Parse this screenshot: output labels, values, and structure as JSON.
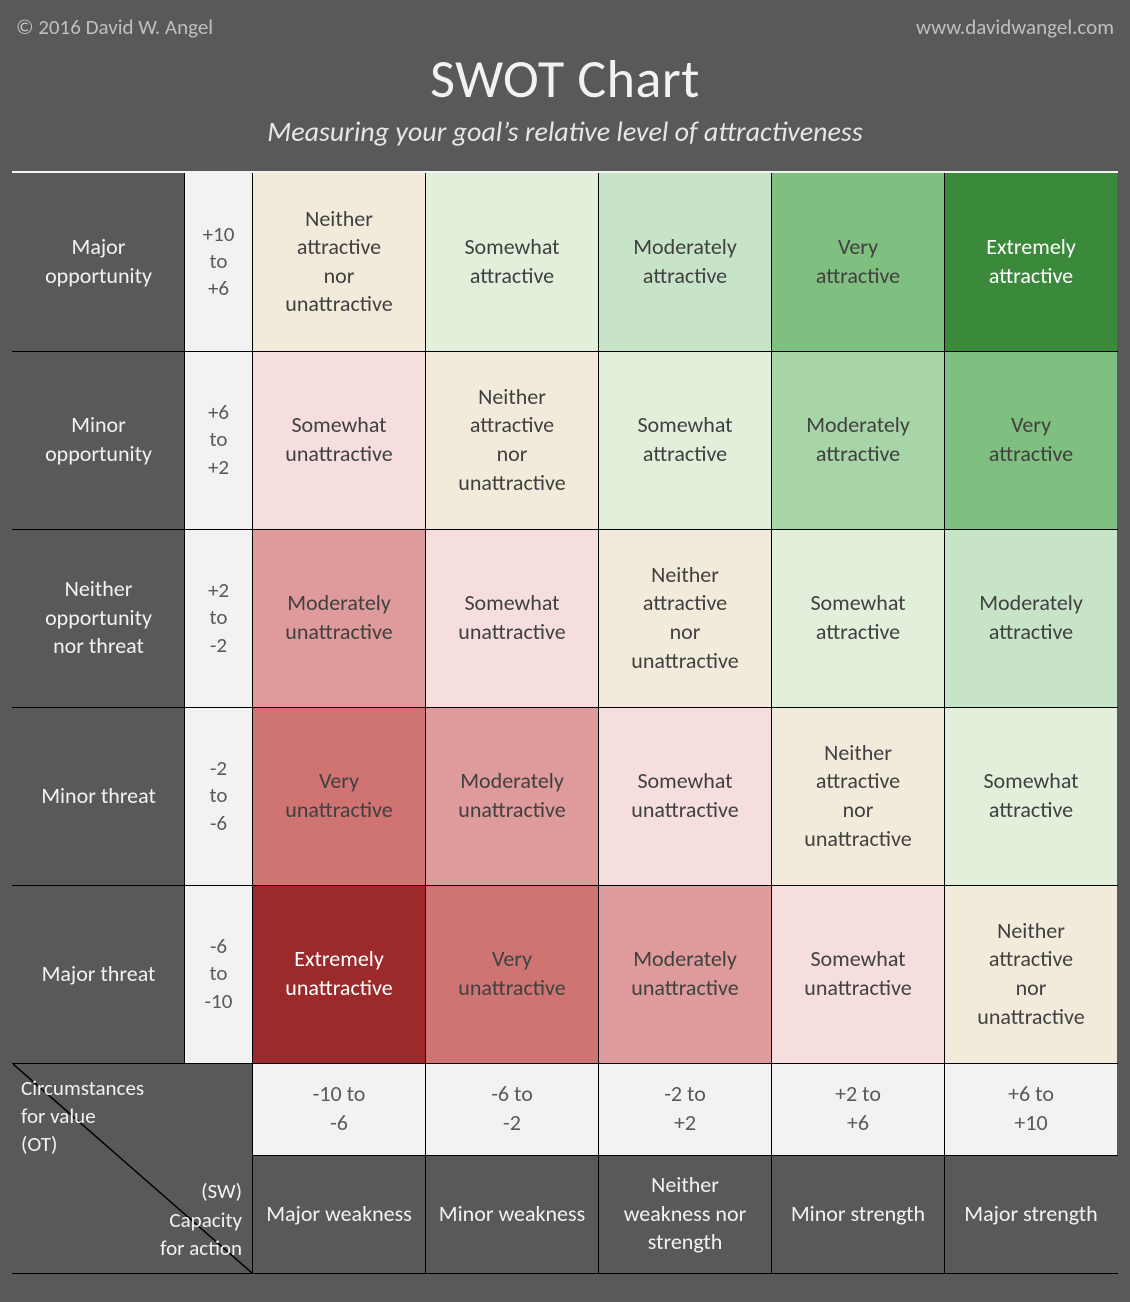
{
  "meta": {
    "copyright": "© 2016 David W. Angel",
    "site": "www.davidwangel.com"
  },
  "title": "SWOT Chart",
  "subtitle": "Measuring your goal’s relative level of attractiveness",
  "axis_corner": {
    "top": "Circumstances for value (OT)",
    "bottom": "(SW) Capacity for action"
  },
  "palette": {
    "g5": "#3b8a3b",
    "g4": "#7fbf7f",
    "g3": "#a8d5a8",
    "g2": "#c8e4c8",
    "g1": "#e2efdb",
    "n0": "#f2ebdb",
    "r1": "#f6dede",
    "r2": "#efc4c4",
    "r3": "#df9b9b",
    "r4": "#d07373",
    "r5": "#9c2a2a",
    "hdr": "#595959",
    "range_bg": "#f2f2f2",
    "text_dark": "#404040",
    "text_light": "#ffffff",
    "text_hdr": "#f2f2f2"
  },
  "row_headers": [
    {
      "label": "Major opportunity",
      "range": "+10 to +6"
    },
    {
      "label": "Minor opportunity",
      "range": "+6 to +2"
    },
    {
      "label": "Neither opportunity nor threat",
      "range": "+2 to -2"
    },
    {
      "label": "Minor threat",
      "range": "-2 to -6"
    },
    {
      "label": "Major threat",
      "range": "-6 to -10"
    }
  ],
  "col_ranges": [
    "-10 to -6",
    "-6 to -2",
    "-2 to +2",
    "+2 to +6",
    "+6 to +10"
  ],
  "col_headers": [
    "Major weakness",
    "Minor weakness",
    "Neither weakness nor strength",
    "Minor strength",
    "Major strength"
  ],
  "grid": [
    [
      {
        "label": "Neither attractive nor unattractive",
        "bg": "n0",
        "light": false
      },
      {
        "label": "Somewhat attractive",
        "bg": "g1",
        "light": false
      },
      {
        "label": "Moderately attractive",
        "bg": "g2",
        "light": false
      },
      {
        "label": "Very attractive",
        "bg": "g4",
        "light": false
      },
      {
        "label": "Extremely attractive",
        "bg": "g5",
        "light": true
      }
    ],
    [
      {
        "label": "Somewhat unattractive",
        "bg": "r1",
        "light": false
      },
      {
        "label": "Neither attractive nor unattractive",
        "bg": "n0",
        "light": false
      },
      {
        "label": "Somewhat attractive",
        "bg": "g1",
        "light": false
      },
      {
        "label": "Moderately attractive",
        "bg": "g3",
        "light": false
      },
      {
        "label": "Very attractive",
        "bg": "g4",
        "light": false
      }
    ],
    [
      {
        "label": "Moderately unattractive",
        "bg": "r3",
        "light": false
      },
      {
        "label": "Somewhat unattractive",
        "bg": "r1",
        "light": false
      },
      {
        "label": "Neither attractive nor unattractive",
        "bg": "n0",
        "light": false
      },
      {
        "label": "Somewhat attractive",
        "bg": "g1",
        "light": false
      },
      {
        "label": "Moderately attractive",
        "bg": "g2",
        "light": false
      }
    ],
    [
      {
        "label": "Very unattractive",
        "bg": "r4",
        "light": false
      },
      {
        "label": "Moderately unattractive",
        "bg": "r3",
        "light": false
      },
      {
        "label": "Somewhat unattractive",
        "bg": "r1",
        "light": false
      },
      {
        "label": "Neither attractive nor unattractive",
        "bg": "n0",
        "light": false
      },
      {
        "label": "Somewhat attractive",
        "bg": "g1",
        "light": false
      }
    ],
    [
      {
        "label": "Extremely unattractive",
        "bg": "r5",
        "light": true
      },
      {
        "label": "Very unattractive",
        "bg": "r4",
        "light": false
      },
      {
        "label": "Moderately unattractive",
        "bg": "r3",
        "light": false
      },
      {
        "label": "Somewhat unattractive",
        "bg": "r1",
        "light": false
      },
      {
        "label": "Neither attractive nor unattractive",
        "bg": "n0",
        "light": false
      }
    ]
  ]
}
